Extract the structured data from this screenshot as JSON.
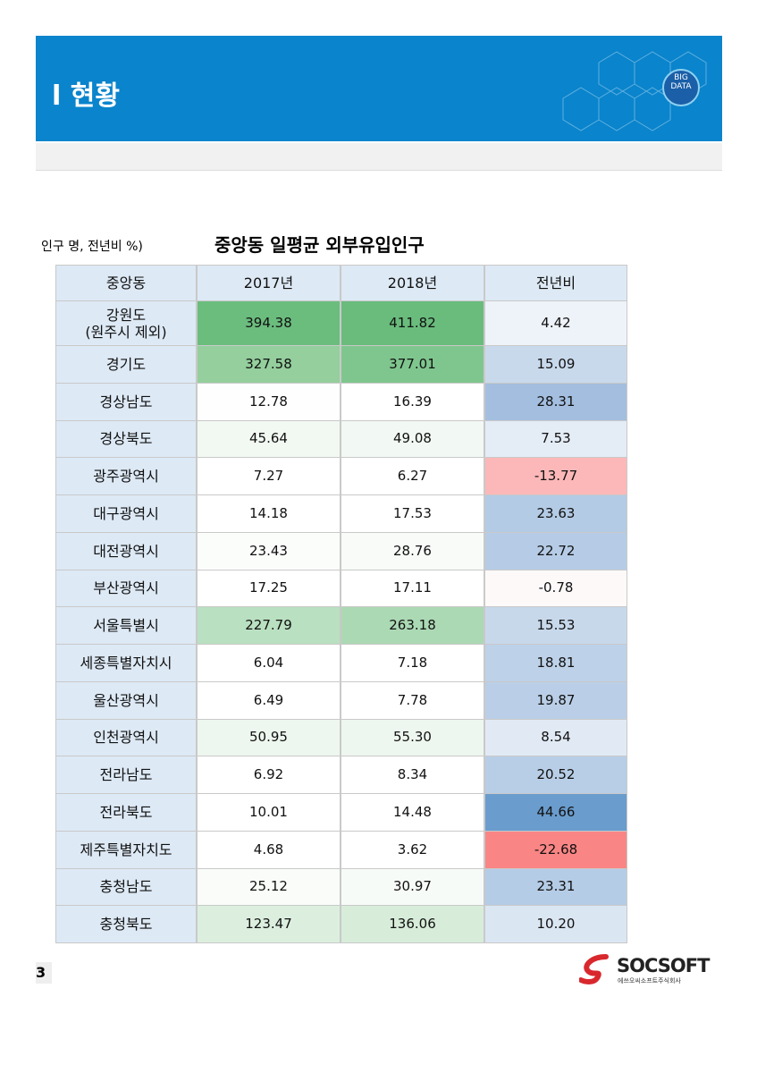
{
  "header": {
    "title": "l 현황",
    "badge": [
      "BIG",
      "DATA"
    ]
  },
  "table": {
    "unit": "인구 명, 전년비 %)",
    "title": "중앙동 일평균 외부유입인구",
    "columns": [
      "중앙동",
      "2017년",
      "2018년",
      "전년비"
    ],
    "rows": [
      [
        "강원도\n(원주시 제외)",
        "394.38",
        "411.82",
        "4.42"
      ],
      [
        "경기도",
        "327.58",
        "377.01",
        "15.09"
      ],
      [
        "경상남도",
        "12.78",
        "16.39",
        "28.31"
      ],
      [
        "경상북도",
        "45.64",
        "49.08",
        "7.53"
      ],
      [
        "광주광역시",
        "7.27",
        "6.27",
        "-13.77"
      ],
      [
        "대구광역시",
        "14.18",
        "17.53",
        "23.63"
      ],
      [
        "대전광역시",
        "23.43",
        "28.76",
        "22.72"
      ],
      [
        "부산광역시",
        "17.25",
        "17.11",
        "-0.78"
      ],
      [
        "서울특별시",
        "227.79",
        "263.18",
        "15.53"
      ],
      [
        "세종특별자치시",
        "6.04",
        "7.18",
        "18.81"
      ],
      [
        "울산광역시",
        "6.49",
        "7.78",
        "19.87"
      ],
      [
        "인천광역시",
        "50.95",
        "55.30",
        "8.54"
      ],
      [
        "전라남도",
        "6.92",
        "8.34",
        "20.52"
      ],
      [
        "전라북도",
        "10.01",
        "14.48",
        "44.66"
      ],
      [
        "제주특별자치도",
        "4.68",
        "3.62",
        "-22.68"
      ],
      [
        "충청남도",
        "25.12",
        "30.97",
        "23.31"
      ],
      [
        "충청북도",
        "123.47",
        "136.06",
        "10.20"
      ]
    ],
    "colors": [
      [
        "#6bbd7e",
        "#69bc7c",
        "#eef3f9"
      ],
      [
        "#94cf9d",
        "#7fc68e",
        "#c9d9ec"
      ],
      [
        "#fdfefd",
        "#ffffff",
        "#a3bedf"
      ],
      [
        "#f2f8f2",
        "#f2f8f3",
        "#e4ecf6"
      ],
      [
        "#ffffff",
        "#ffffff",
        "#fcb8b8"
      ],
      [
        "#ffffff",
        "#ffffff",
        "#b4cbe5"
      ],
      [
        "#fbfdfb",
        "#f8fbf8",
        "#b6cce6"
      ],
      [
        "#ffffff",
        "#ffffff",
        "#fdf9f9"
      ],
      [
        "#b9e0c0",
        "#abd9b4",
        "#c7d8eb"
      ],
      [
        "#ffffff",
        "#ffffff",
        "#bdd1e8"
      ],
      [
        "#ffffff",
        "#ffffff",
        "#bacfe7"
      ],
      [
        "#eef7ef",
        "#eef7ef",
        "#e1eaf4"
      ],
      [
        "#ffffff",
        "#ffffff",
        "#b8cee7"
      ],
      [
        "#ffffff",
        "#ffffff",
        "#6a9ccd"
      ],
      [
        "#ffffff",
        "#ffffff",
        "#f98585"
      ],
      [
        "#f9fcf9",
        "#f7fbf7",
        "#b5cce6"
      ],
      [
        "#dcefdf",
        "#d7edda",
        "#dbe6f3"
      ]
    ]
  },
  "footer": {
    "page": "3",
    "logo": "SOCSOFT",
    "company": "에쓰오씨소프트주식회사"
  }
}
